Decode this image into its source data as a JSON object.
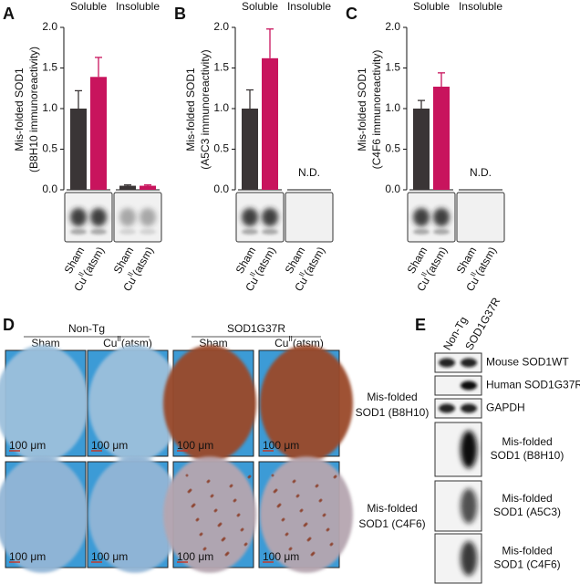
{
  "chart_data": [
    {
      "type": "bar",
      "panel": "A",
      "ylabel": [
        "Mis-folded SOD1",
        "(B8H10 immunoreactivity)"
      ],
      "categories": [
        "Soluble",
        "Insoluble"
      ],
      "series": [
        {
          "name": "Sham",
          "color": "#3a3536",
          "values": [
            1.0,
            0.05
          ],
          "errors": [
            0.22,
            0.01
          ]
        },
        {
          "name": {
            "text": "Cu",
            "superscript": "II",
            "suffix": "(atsm)"
          },
          "color": "#c8145d",
          "values": [
            1.39,
            0.05
          ],
          "errors": [
            0.24,
            0.01
          ]
        }
      ],
      "ylim": [
        0,
        2
      ],
      "yticks": [
        {
          "value": 0,
          "label": "0.0"
        },
        0.5,
        {
          "value": 1,
          "label": "1.0"
        },
        1.5,
        {
          "value": 2,
          "label": "2.0"
        }
      ]
    },
    {
      "type": "bar",
      "panel": "B",
      "ylabel": [
        "Mis-folded SOD1",
        "(A5C3 immunoreactivity)"
      ],
      "categories": [
        "Soluble",
        "Insoluble"
      ],
      "series": [
        {
          "name": "Sham",
          "color": "#3a3536",
          "values": [
            1.0,
            null
          ],
          "errors": [
            0.23,
            null
          ]
        },
        {
          "name": {
            "text": "Cu",
            "superscript": "II",
            "suffix": "(atsm)"
          },
          "color": "#c8145d",
          "values": [
            1.62,
            null
          ],
          "errors": [
            0.36,
            null
          ]
        }
      ],
      "annotation": "N.D.",
      "ylim": [
        0,
        2
      ],
      "yticks": [
        {
          "value": 0,
          "label": "0.0"
        },
        0.5,
        {
          "value": 1,
          "label": "1.0"
        },
        1.5,
        {
          "value": 2,
          "label": "2.0"
        }
      ]
    },
    {
      "type": "bar",
      "panel": "C",
      "ylabel": [
        "Mis-folded SOD1",
        "(C4F6 immunoreactivity)"
      ],
      "categories": [
        "Soluble",
        "Insoluble"
      ],
      "series": [
        {
          "name": "Sham",
          "color": "#3a3536",
          "values": [
            1.0,
            null
          ],
          "errors": [
            0.1,
            null
          ]
        },
        {
          "name": {
            "text": "Cu",
            "superscript": "II",
            "suffix": "(atsm)"
          },
          "color": "#c8145d",
          "values": [
            1.27,
            null
          ],
          "errors": [
            0.17,
            null
          ]
        }
      ],
      "annotation": "N.D.",
      "ylim": [
        0,
        2
      ],
      "yticks": [
        {
          "value": 0,
          "label": "0.0"
        },
        0.5,
        {
          "value": 1,
          "label": "1.0"
        },
        1.5,
        {
          "value": 2,
          "label": "2.0"
        }
      ]
    }
  ],
  "panel_d": {
    "label": "D",
    "groups": [
      {
        "title": "Non-Tg",
        "columns": [
          "Sham",
          {
            "text": "Cu",
            "superscript": "II",
            "suffix": "(atsm)"
          }
        ]
      },
      {
        "title": "SOD1G37R",
        "columns": [
          "Sham",
          {
            "text": "Cu",
            "superscript": "II",
            "suffix": "(atsm)"
          }
        ]
      }
    ],
    "rows": [
      [
        "Mis-folded",
        "SOD1 (B8H10)"
      ],
      [
        "Mis-folded",
        "SOD1 (C4F6)"
      ]
    ],
    "scale_bar": "100 μm"
  },
  "panel_e": {
    "label": "E",
    "columns": [
      "Non-Tg",
      "SOD1G37R"
    ],
    "rows": [
      [
        "Mouse SOD1WT"
      ],
      [
        "Human SOD1G37R"
      ],
      [
        "GAPDH"
      ],
      [
        "Mis-folded",
        "SOD1 (B8H10)"
      ],
      [
        "Mis-folded",
        "SOD1 (A5C3)"
      ],
      [
        "Mis-folded",
        "SOD1 (C4F6)"
      ]
    ]
  }
}
